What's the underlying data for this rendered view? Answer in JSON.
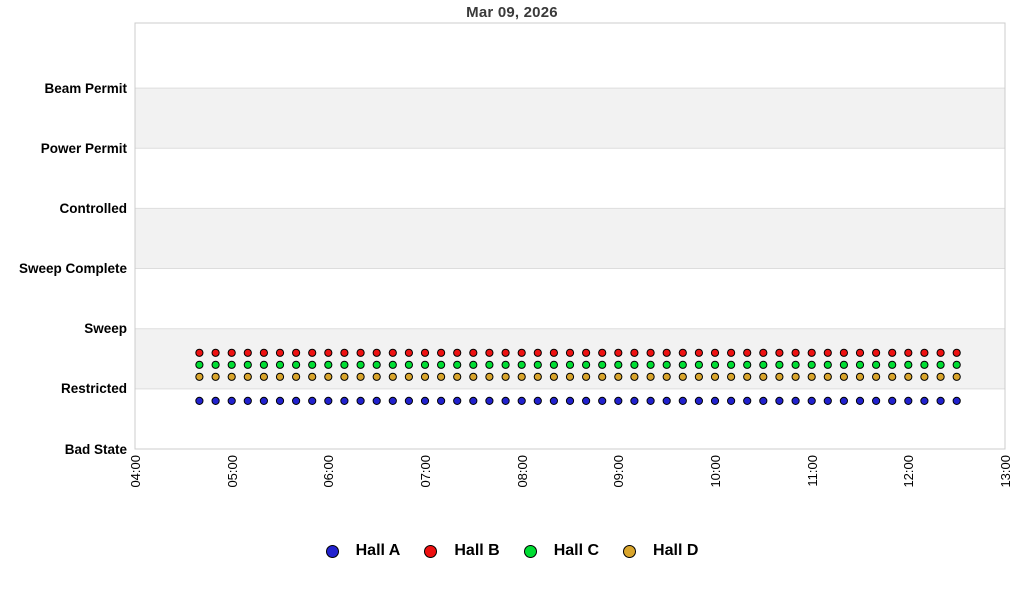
{
  "chart_data": {
    "type": "scatter",
    "title": "Mar 09, 2026",
    "x_axis": {
      "ticks": [
        "04:00",
        "05:00",
        "06:00",
        "07:00",
        "08:00",
        "09:00",
        "10:00",
        "11:00",
        "12:00",
        "13:00"
      ],
      "start_hour": 4,
      "end_hour": 13
    },
    "y_axis": {
      "categories_bottom_to_top": [
        "Bad State",
        "Restricted",
        "Sweep",
        "Sweep Complete",
        "Controlled",
        "Power Permit",
        "Beam Permit"
      ],
      "top_padding_units": 1.08
    },
    "shaded_band_rows": [
      1,
      3,
      5
    ],
    "grid": "banded",
    "legend_position": "bottom",
    "series": [
      {
        "name": "Hall A",
        "color": "#2222cf",
        "state": "Restricted",
        "plot_value": 0.8,
        "start": "04:40",
        "end": "12:30",
        "interval_minutes": 10
      },
      {
        "name": "Hall B",
        "color": "#ee1111",
        "state": "Restricted",
        "plot_value": 1.6,
        "start": "04:40",
        "end": "12:30",
        "interval_minutes": 10
      },
      {
        "name": "Hall C",
        "color": "#00dd33",
        "state": "Restricted",
        "plot_value": 1.4,
        "start": "04:40",
        "end": "12:30",
        "interval_minutes": 10
      },
      {
        "name": "Hall D",
        "color": "#d9a52c",
        "state": "Restricted",
        "plot_value": 1.2,
        "start": "04:40",
        "end": "12:30",
        "interval_minutes": 10
      }
    ],
    "colors": {
      "band": "#f2f2f2",
      "gridline": "#dddddd",
      "border": "#cccccc",
      "title_text": "#3a3a3a",
      "label_text": "#000000"
    }
  }
}
